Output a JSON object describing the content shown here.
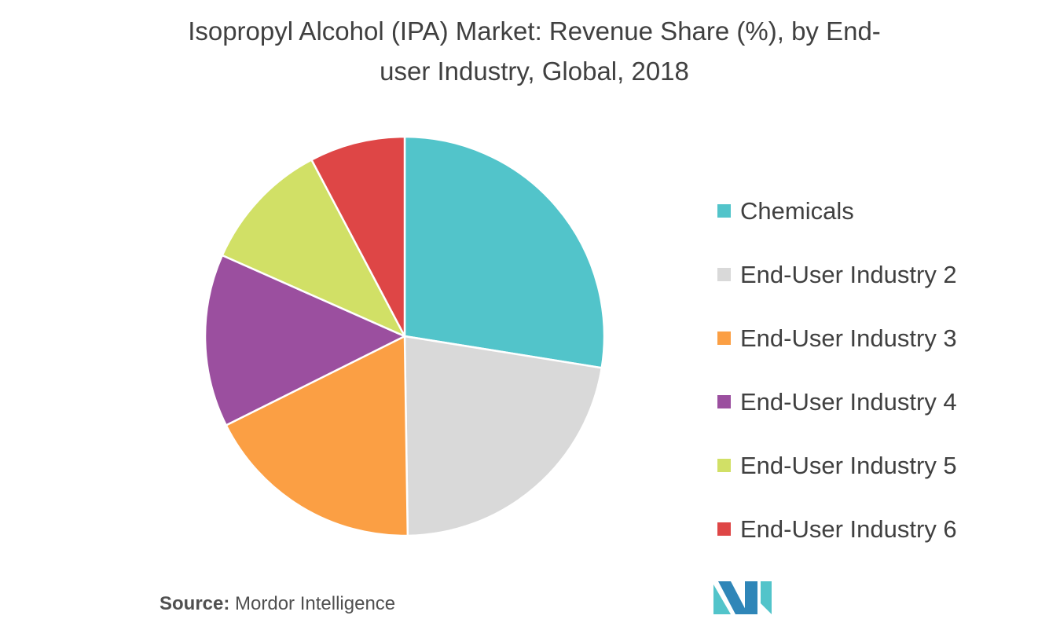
{
  "chart_data": {
    "type": "pie",
    "title_line1": "Isopropyl Alcohol (IPA)  Market: Revenue Share (%), by End-",
    "title_line2": "user Industry, Global, 2018",
    "slices": [
      {
        "label": "Chemicals",
        "value": 28.5,
        "color": "#52C4CA"
      },
      {
        "label": "End-User Industry 2",
        "value": 23.0,
        "color": "#D9D9D9"
      },
      {
        "label": "End-User Industry 3",
        "value": 18.5,
        "color": "#FB9F44"
      },
      {
        "label": "End-User Industry 4",
        "value": 14.5,
        "color": "#9B4F9F"
      },
      {
        "label": "End-User Industry 5",
        "value": 11.0,
        "color": "#D1E066"
      },
      {
        "label": "End-User Industry 6",
        "value": 8.0,
        "color": "#DE4646"
      }
    ],
    "legend_position": "right"
  },
  "source": {
    "prefix": "Source:",
    "text": "Mordor Intelligence"
  },
  "logo": {
    "icon": "mordor-intelligence-logo",
    "colors": [
      "#2F86B8",
      "#52C4CA"
    ]
  }
}
